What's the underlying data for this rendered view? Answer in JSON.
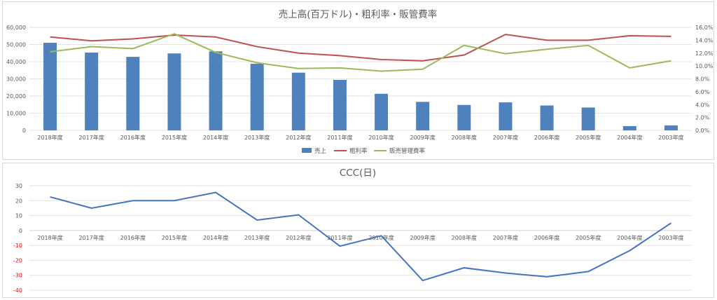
{
  "chart_data": [
    {
      "type": "bar+line",
      "title": "売上高(百万ドル)・粗利率・販管費率",
      "categories": [
        "2018年度",
        "2017年度",
        "2016年度",
        "2015年度",
        "2014年度",
        "2013年度",
        "2012年度",
        "2011年度",
        "2010年度",
        "2009年度",
        "2008年度",
        "2007年度",
        "2006年度",
        "2005年度",
        "2004年度",
        "2003年度"
      ],
      "y_left_ticks": [
        "0",
        "10,000",
        "20,000",
        "30,000",
        "40,000",
        "50,000",
        "60,000"
      ],
      "y_right_ticks": [
        "0.0%",
        "2.0%",
        "4.0%",
        "6.0%",
        "8.0%",
        "10.0%",
        "12.0%",
        "14.0%",
        "16.0%"
      ],
      "ylim_left": [
        0,
        60000
      ],
      "ylim_right": [
        0,
        16
      ],
      "grid": true,
      "legend_position": "bottom",
      "series": [
        {
          "name": "売上",
          "type": "bar",
          "axis": "left",
          "color": "#4f81bd",
          "values": [
            51000,
            45300,
            42800,
            44800,
            46000,
            38800,
            33600,
            29400,
            21300,
            16600,
            14800,
            16300,
            14500,
            13300,
            2500,
            2900
          ]
        },
        {
          "name": "粗利率",
          "type": "line",
          "axis": "right",
          "color": "#c0504d",
          "values": [
            14.5,
            13.9,
            14.2,
            14.8,
            14.5,
            13.0,
            12.0,
            11.6,
            11.0,
            10.8,
            11.7,
            14.9,
            14.0,
            14.0,
            14.7,
            14.6
          ]
        },
        {
          "name": "販売管理費率",
          "type": "line",
          "axis": "right",
          "color": "#9bbb59",
          "values": [
            12.2,
            13.0,
            12.7,
            15.0,
            12.1,
            10.5,
            9.6,
            9.7,
            9.2,
            9.5,
            13.2,
            11.9,
            12.6,
            13.2,
            9.7,
            10.8
          ]
        }
      ]
    },
    {
      "type": "line",
      "title": "CCC(日)",
      "categories": [
        "2018年度",
        "2017年度",
        "2016年度",
        "2015年度",
        "2014年度",
        "2013年度",
        "2012年度",
        "2011年度",
        "2010年度",
        "2009年度",
        "2008年度",
        "2007年度",
        "2006年度",
        "2005年度",
        "2004年度",
        "2003年度"
      ],
      "y_ticks": [
        "30",
        "20",
        "10",
        "0",
        "-10",
        "-20",
        "-30",
        "-40"
      ],
      "ylim": [
        -40,
        30
      ],
      "grid": true,
      "negative_tick_color": "#ff0000",
      "series": [
        {
          "type": "line",
          "color": "#4472c4",
          "values": [
            22.5,
            15.0,
            20.0,
            20.0,
            25.5,
            7.0,
            10.5,
            -10.5,
            -3.5,
            -33.5,
            -25.0,
            -28.5,
            -31.0,
            -27.5,
            -13.5,
            5.0
          ]
        }
      ]
    }
  ]
}
